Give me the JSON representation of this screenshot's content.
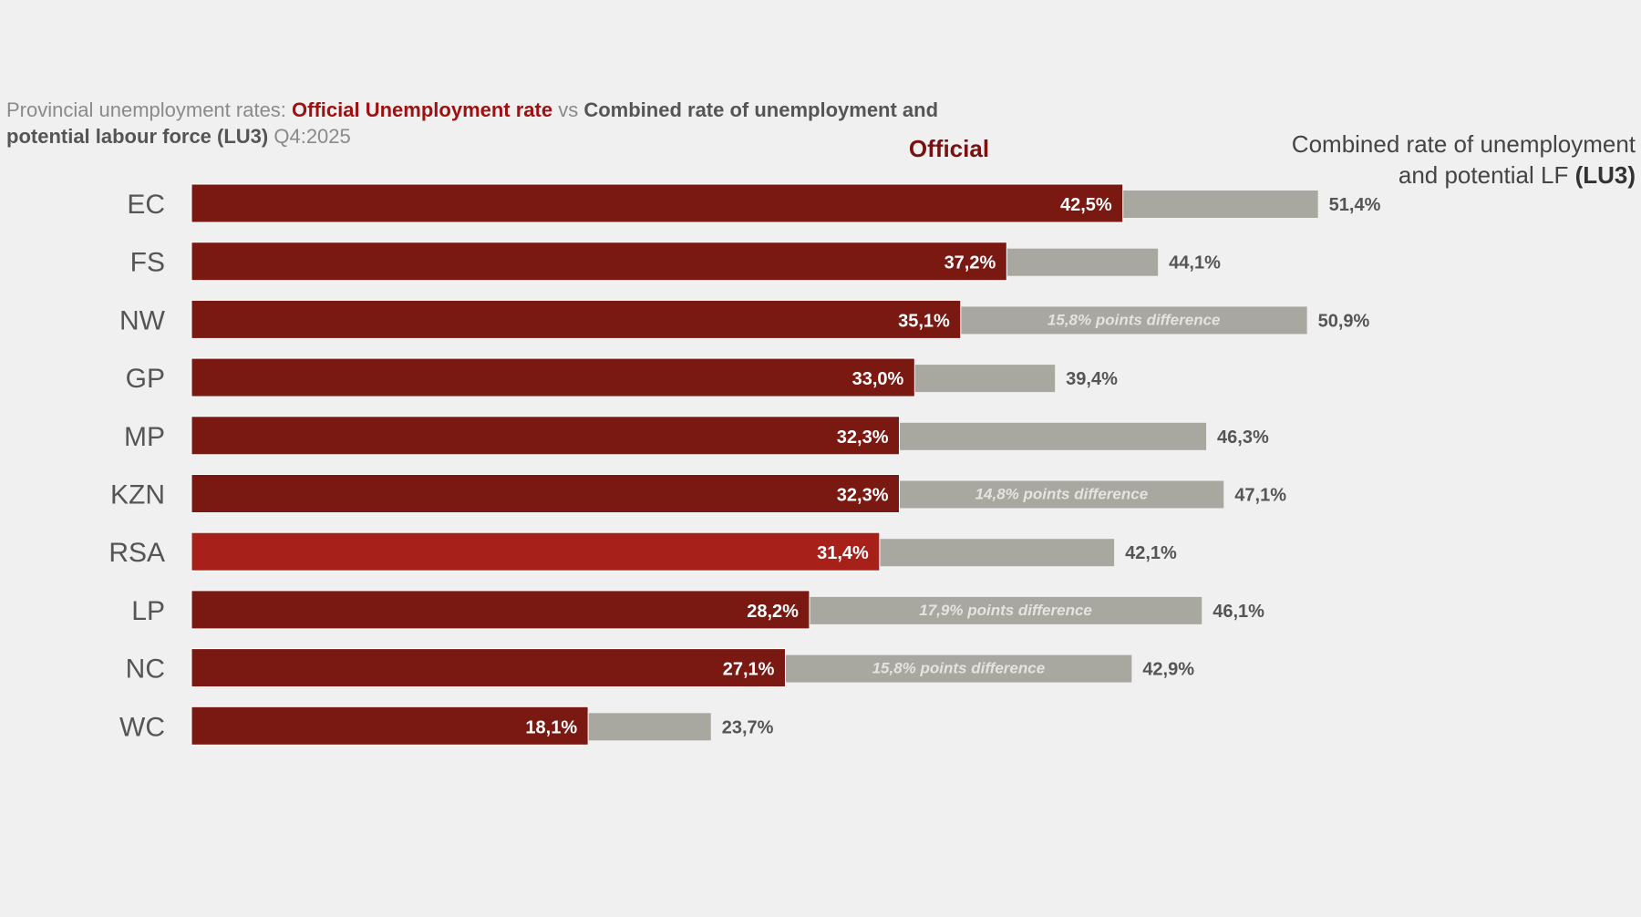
{
  "title": {
    "prefix": "Provincial unemployment rates: ",
    "red": "Official Unemployment rate",
    "vs": " vs ",
    "bold": "Combined rate of unemployment and potential labour force (LU3)",
    "suffix": " Q4:2025"
  },
  "legend": {
    "official": "Official",
    "lu3_line1": "Combined rate of unemployment",
    "lu3_line2": "and potential LF ",
    "lu3_bold": "(LU3)"
  },
  "colors": {
    "official": "#7a1812",
    "rsa": "#a8201a",
    "lu3": "#a9a8a0"
  },
  "chart_data": {
    "type": "bar",
    "orientation": "horizontal",
    "categories": [
      "EC",
      "FS",
      "NW",
      "GP",
      "MP",
      "KZN",
      "RSA",
      "LP",
      "NC",
      "WC"
    ],
    "series": [
      {
        "name": "Official",
        "values": [
          42.5,
          37.2,
          35.1,
          33.0,
          32.3,
          32.3,
          31.4,
          28.2,
          27.1,
          18.1
        ]
      },
      {
        "name": "Combined rate of unemployment and potential LF (LU3)",
        "values": [
          51.4,
          44.1,
          50.9,
          39.4,
          46.3,
          47.1,
          42.1,
          46.1,
          42.9,
          23.7
        ]
      }
    ],
    "official_labels": [
      "42,5%",
      "37,2%",
      "35,1%",
      "33,0%",
      "32,3%",
      "32,3%",
      "31,4%",
      "28,2%",
      "27,1%",
      "18,1%"
    ],
    "lu3_labels": [
      "51,4%",
      "44,1%",
      "50,9%",
      "39,4%",
      "46,3%",
      "47,1%",
      "42,1%",
      "46,1%",
      "42,9%",
      "23,7%"
    ],
    "annotations": [
      "",
      "",
      "15,8% points difference",
      "",
      "",
      "14,8% points difference",
      "",
      "17,9% points difference",
      "15,8% points difference",
      ""
    ],
    "highlight": "RSA",
    "grid": false
  }
}
